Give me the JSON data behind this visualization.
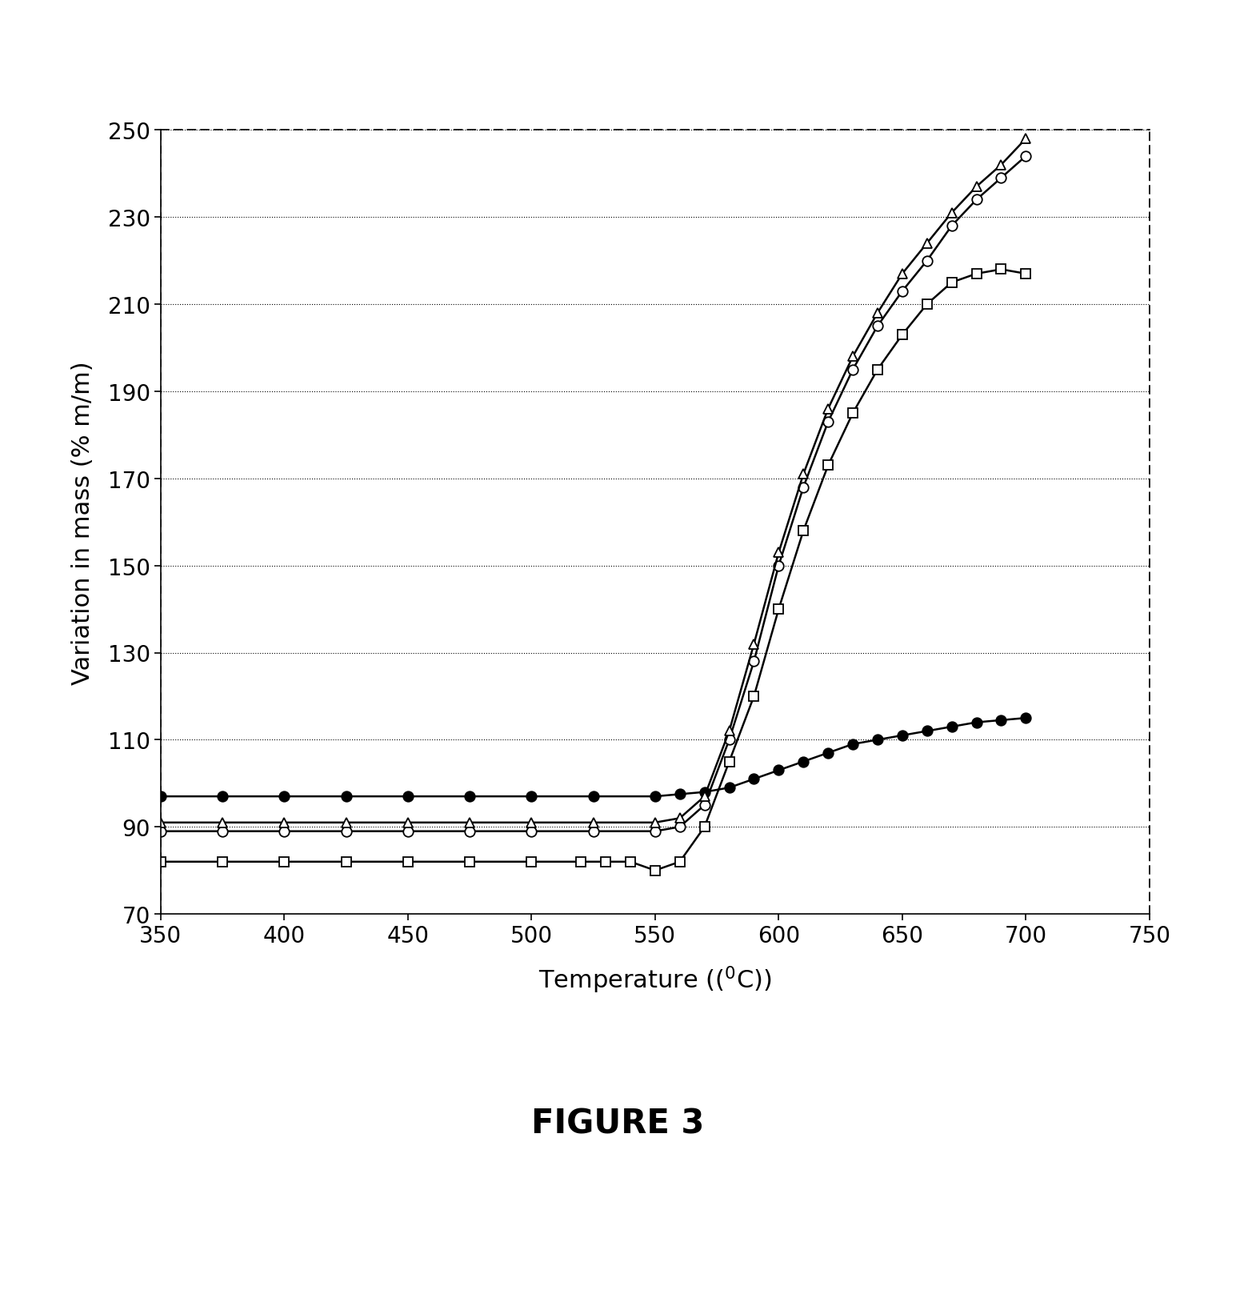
{
  "title": "FIGURE 3",
  "xlabel": "Temperature (°C)",
  "ylabel": "Variation in mass (% m/m)",
  "xlabel_superscript": true,
  "xlim": [
    350,
    750
  ],
  "ylim": [
    70,
    250
  ],
  "xticks": [
    350,
    400,
    450,
    500,
    550,
    600,
    650,
    700,
    750
  ],
  "yticks": [
    70,
    90,
    110,
    130,
    150,
    170,
    190,
    210,
    230,
    250
  ],
  "series": [
    {
      "name": "filled_circle",
      "marker": "o",
      "filled": true,
      "color": "#000000",
      "x": [
        350,
        375,
        400,
        425,
        450,
        475,
        500,
        525,
        550,
        560,
        570,
        580,
        590,
        600,
        610,
        620,
        630,
        640,
        650,
        660,
        670,
        680,
        690,
        700
      ],
      "y": [
        97,
        97,
        97,
        97,
        97,
        97,
        97,
        97,
        97,
        97.5,
        98,
        99,
        101,
        103,
        105,
        107,
        109,
        110,
        111,
        112,
        113,
        114,
        114.5,
        115
      ]
    },
    {
      "name": "open_circle",
      "marker": "o",
      "filled": false,
      "color": "#000000",
      "x": [
        350,
        375,
        400,
        425,
        450,
        475,
        500,
        525,
        550,
        560,
        570,
        580,
        590,
        600,
        610,
        620,
        630,
        640,
        650,
        660,
        670,
        680,
        690,
        700
      ],
      "y": [
        89,
        89,
        89,
        89,
        89,
        89,
        89,
        89,
        89,
        90,
        95,
        110,
        128,
        150,
        168,
        183,
        195,
        205,
        213,
        220,
        228,
        234,
        239,
        244
      ]
    },
    {
      "name": "open_triangle",
      "marker": "^",
      "filled": false,
      "color": "#000000",
      "x": [
        350,
        375,
        400,
        425,
        450,
        475,
        500,
        525,
        550,
        560,
        570,
        580,
        590,
        600,
        610,
        620,
        630,
        640,
        650,
        660,
        670,
        680,
        690,
        700
      ],
      "y": [
        91,
        91,
        91,
        91,
        91,
        91,
        91,
        91,
        91,
        92,
        97,
        112,
        132,
        153,
        171,
        186,
        198,
        208,
        217,
        224,
        231,
        237,
        242,
        248
      ]
    },
    {
      "name": "open_square",
      "marker": "s",
      "filled": false,
      "color": "#000000",
      "x": [
        350,
        375,
        400,
        425,
        450,
        475,
        500,
        520,
        530,
        540,
        550,
        560,
        570,
        580,
        590,
        600,
        610,
        620,
        630,
        640,
        650,
        660,
        670,
        680,
        690,
        700
      ],
      "y": [
        82,
        82,
        82,
        82,
        82,
        82,
        82,
        82,
        82,
        82,
        80,
        82,
        90,
        105,
        120,
        140,
        158,
        173,
        185,
        195,
        203,
        210,
        215,
        217,
        218,
        217
      ]
    }
  ],
  "background_color": "#ffffff",
  "font_color": "#000000",
  "markersize": 9,
  "linewidth": 1.8,
  "markeredgewidth": 1.3
}
